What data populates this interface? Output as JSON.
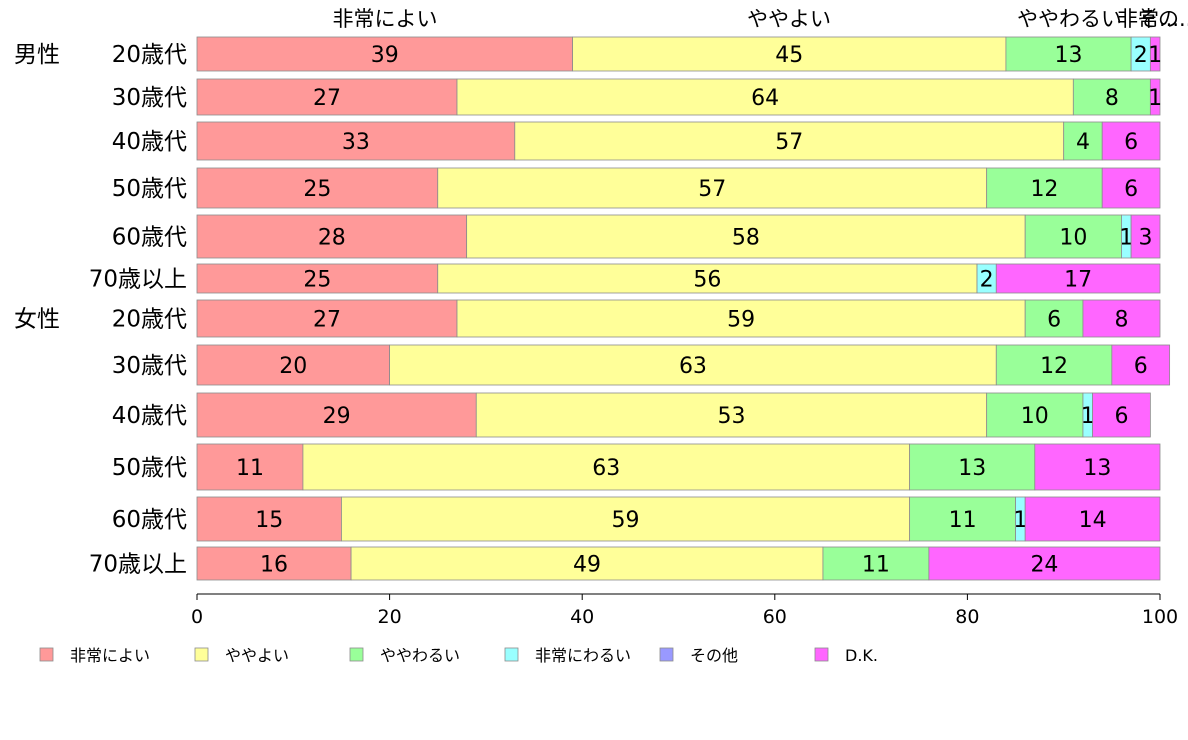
{
  "chart_data": {
    "type": "bar",
    "orientation": "horizontal",
    "stacked": true,
    "xlim": [
      0,
      100
    ],
    "x_ticks": [
      0,
      20,
      40,
      60,
      80,
      100
    ],
    "grid": false,
    "legend_position": "bottom",
    "top_labels": [
      "非常によい",
      "ややよい",
      "ややわるい",
      "非常...",
      "その..."
    ],
    "groups": [
      {
        "label": "男性",
        "start_index": 0
      },
      {
        "label": "女性",
        "start_index": 6
      }
    ],
    "categories": [
      "20歳代",
      "30歳代",
      "40歳代",
      "50歳代",
      "60歳代",
      "70歳以上",
      "20歳代",
      "30歳代",
      "40歳代",
      "50歳代",
      "60歳代",
      "70歳以上"
    ],
    "series": [
      {
        "name": "非常によい",
        "color": "#ff9999",
        "values": [
          39,
          27,
          33,
          25,
          28,
          25,
          27,
          20,
          29,
          11,
          15,
          16
        ]
      },
      {
        "name": "ややよい",
        "color": "#ffff99",
        "values": [
          45,
          64,
          57,
          57,
          58,
          56,
          59,
          63,
          53,
          63,
          59,
          49
        ]
      },
      {
        "name": "ややわるい",
        "color": "#99ff99",
        "values": [
          13,
          8,
          4,
          12,
          10,
          0,
          6,
          12,
          10,
          13,
          11,
          11
        ]
      },
      {
        "name": "非常にわるい",
        "color": "#99ffff",
        "values": [
          2,
          0,
          0,
          0,
          1,
          2,
          0,
          0,
          1,
          0,
          1,
          0
        ]
      },
      {
        "name": "その他",
        "color": "#9999ff",
        "values": [
          0,
          0,
          0,
          0,
          0,
          0,
          0,
          0,
          0,
          0,
          0,
          0
        ]
      },
      {
        "name": "D.K.",
        "color": "#ff66ff",
        "values": [
          1,
          1,
          6,
          6,
          3,
          17,
          8,
          6,
          6,
          13,
          14,
          24
        ]
      }
    ]
  }
}
